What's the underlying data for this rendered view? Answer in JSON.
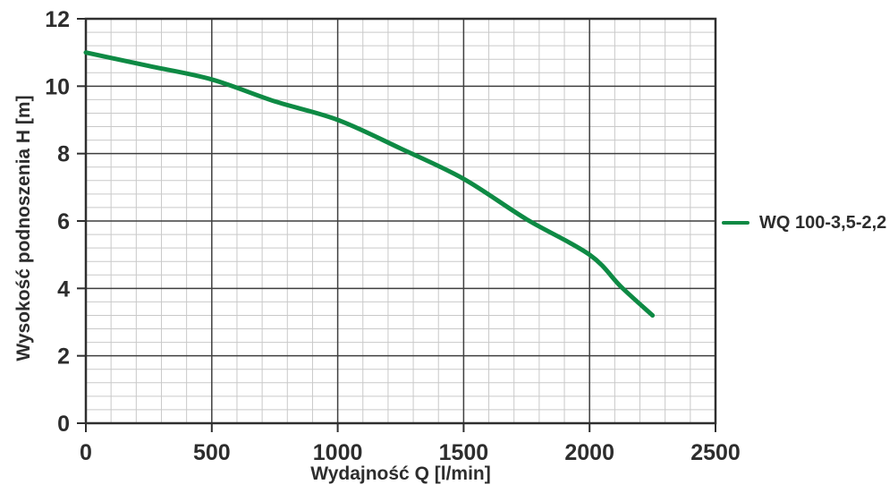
{
  "chart_data": {
    "type": "line",
    "title": "",
    "xlabel": "Wydajność Q [l/min]",
    "ylabel": "Wysokość podnoszenia H [m]",
    "xlim": [
      0,
      2500
    ],
    "ylim": [
      0,
      12
    ],
    "x_major_ticks": [
      0,
      500,
      1000,
      1500,
      2000,
      2500
    ],
    "y_major_ticks": [
      0,
      2,
      4,
      6,
      8,
      10,
      12
    ],
    "x_minor_step": 100,
    "y_minor_step": 0.4,
    "grid": "major+minor",
    "legend_position": "right",
    "colors": {
      "curve_green": "#0e8a44",
      "grid_minor": "#c9c9c9",
      "grid_major": "#3f3f3f",
      "axis_frame": "#2f2f2f",
      "text": "#2d2d2d",
      "background": "#ffffff"
    },
    "series": [
      {
        "name": "WQ 100-3,5-2,2",
        "color": "#0e8a44",
        "x": [
          0,
          250,
          500,
          750,
          1000,
          1250,
          1500,
          1750,
          2000,
          2125,
          2250
        ],
        "y": [
          11.0,
          10.6,
          10.2,
          9.55,
          9.0,
          8.15,
          7.25,
          6.05,
          5.0,
          4.05,
          3.2
        ]
      }
    ]
  }
}
